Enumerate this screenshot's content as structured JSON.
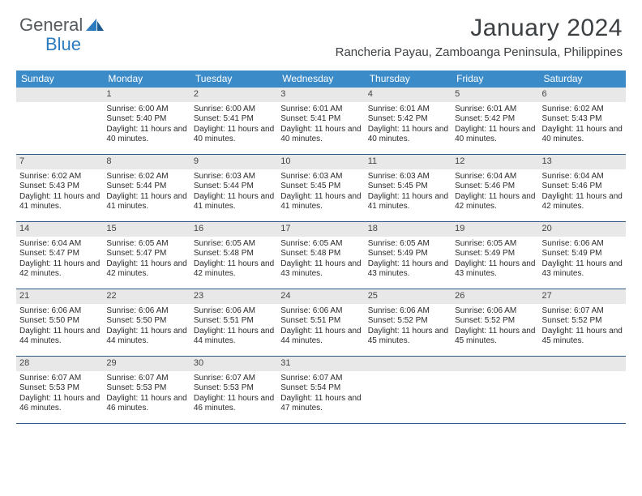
{
  "brand": {
    "part1": "General",
    "part2": "Blue"
  },
  "colors": {
    "header_bg": "#3b8bc9",
    "header_text": "#ffffff",
    "border": "#305a84",
    "daynum_bg": "#e8e8e8",
    "text": "#2b2b2b",
    "brand_gray": "#555a5e",
    "brand_blue": "#2c7bbf"
  },
  "title": "January 2024",
  "location": "Rancheria Payau, Zamboanga Peninsula, Philippines",
  "day_names": [
    "Sunday",
    "Monday",
    "Tuesday",
    "Wednesday",
    "Thursday",
    "Friday",
    "Saturday"
  ],
  "weeks": [
    [
      {
        "num": "",
        "sunrise": "",
        "sunset": "",
        "daylight": ""
      },
      {
        "num": "1",
        "sunrise": "Sunrise: 6:00 AM",
        "sunset": "Sunset: 5:40 PM",
        "daylight": "Daylight: 11 hours and 40 minutes."
      },
      {
        "num": "2",
        "sunrise": "Sunrise: 6:00 AM",
        "sunset": "Sunset: 5:41 PM",
        "daylight": "Daylight: 11 hours and 40 minutes."
      },
      {
        "num": "3",
        "sunrise": "Sunrise: 6:01 AM",
        "sunset": "Sunset: 5:41 PM",
        "daylight": "Daylight: 11 hours and 40 minutes."
      },
      {
        "num": "4",
        "sunrise": "Sunrise: 6:01 AM",
        "sunset": "Sunset: 5:42 PM",
        "daylight": "Daylight: 11 hours and 40 minutes."
      },
      {
        "num": "5",
        "sunrise": "Sunrise: 6:01 AM",
        "sunset": "Sunset: 5:42 PM",
        "daylight": "Daylight: 11 hours and 40 minutes."
      },
      {
        "num": "6",
        "sunrise": "Sunrise: 6:02 AM",
        "sunset": "Sunset: 5:43 PM",
        "daylight": "Daylight: 11 hours and 40 minutes."
      }
    ],
    [
      {
        "num": "7",
        "sunrise": "Sunrise: 6:02 AM",
        "sunset": "Sunset: 5:43 PM",
        "daylight": "Daylight: 11 hours and 41 minutes."
      },
      {
        "num": "8",
        "sunrise": "Sunrise: 6:02 AM",
        "sunset": "Sunset: 5:44 PM",
        "daylight": "Daylight: 11 hours and 41 minutes."
      },
      {
        "num": "9",
        "sunrise": "Sunrise: 6:03 AM",
        "sunset": "Sunset: 5:44 PM",
        "daylight": "Daylight: 11 hours and 41 minutes."
      },
      {
        "num": "10",
        "sunrise": "Sunrise: 6:03 AM",
        "sunset": "Sunset: 5:45 PM",
        "daylight": "Daylight: 11 hours and 41 minutes."
      },
      {
        "num": "11",
        "sunrise": "Sunrise: 6:03 AM",
        "sunset": "Sunset: 5:45 PM",
        "daylight": "Daylight: 11 hours and 41 minutes."
      },
      {
        "num": "12",
        "sunrise": "Sunrise: 6:04 AM",
        "sunset": "Sunset: 5:46 PM",
        "daylight": "Daylight: 11 hours and 42 minutes."
      },
      {
        "num": "13",
        "sunrise": "Sunrise: 6:04 AM",
        "sunset": "Sunset: 5:46 PM",
        "daylight": "Daylight: 11 hours and 42 minutes."
      }
    ],
    [
      {
        "num": "14",
        "sunrise": "Sunrise: 6:04 AM",
        "sunset": "Sunset: 5:47 PM",
        "daylight": "Daylight: 11 hours and 42 minutes."
      },
      {
        "num": "15",
        "sunrise": "Sunrise: 6:05 AM",
        "sunset": "Sunset: 5:47 PM",
        "daylight": "Daylight: 11 hours and 42 minutes."
      },
      {
        "num": "16",
        "sunrise": "Sunrise: 6:05 AM",
        "sunset": "Sunset: 5:48 PM",
        "daylight": "Daylight: 11 hours and 42 minutes."
      },
      {
        "num": "17",
        "sunrise": "Sunrise: 6:05 AM",
        "sunset": "Sunset: 5:48 PM",
        "daylight": "Daylight: 11 hours and 43 minutes."
      },
      {
        "num": "18",
        "sunrise": "Sunrise: 6:05 AM",
        "sunset": "Sunset: 5:49 PM",
        "daylight": "Daylight: 11 hours and 43 minutes."
      },
      {
        "num": "19",
        "sunrise": "Sunrise: 6:05 AM",
        "sunset": "Sunset: 5:49 PM",
        "daylight": "Daylight: 11 hours and 43 minutes."
      },
      {
        "num": "20",
        "sunrise": "Sunrise: 6:06 AM",
        "sunset": "Sunset: 5:49 PM",
        "daylight": "Daylight: 11 hours and 43 minutes."
      }
    ],
    [
      {
        "num": "21",
        "sunrise": "Sunrise: 6:06 AM",
        "sunset": "Sunset: 5:50 PM",
        "daylight": "Daylight: 11 hours and 44 minutes."
      },
      {
        "num": "22",
        "sunrise": "Sunrise: 6:06 AM",
        "sunset": "Sunset: 5:50 PM",
        "daylight": "Daylight: 11 hours and 44 minutes."
      },
      {
        "num": "23",
        "sunrise": "Sunrise: 6:06 AM",
        "sunset": "Sunset: 5:51 PM",
        "daylight": "Daylight: 11 hours and 44 minutes."
      },
      {
        "num": "24",
        "sunrise": "Sunrise: 6:06 AM",
        "sunset": "Sunset: 5:51 PM",
        "daylight": "Daylight: 11 hours and 44 minutes."
      },
      {
        "num": "25",
        "sunrise": "Sunrise: 6:06 AM",
        "sunset": "Sunset: 5:52 PM",
        "daylight": "Daylight: 11 hours and 45 minutes."
      },
      {
        "num": "26",
        "sunrise": "Sunrise: 6:06 AM",
        "sunset": "Sunset: 5:52 PM",
        "daylight": "Daylight: 11 hours and 45 minutes."
      },
      {
        "num": "27",
        "sunrise": "Sunrise: 6:07 AM",
        "sunset": "Sunset: 5:52 PM",
        "daylight": "Daylight: 11 hours and 45 minutes."
      }
    ],
    [
      {
        "num": "28",
        "sunrise": "Sunrise: 6:07 AM",
        "sunset": "Sunset: 5:53 PM",
        "daylight": "Daylight: 11 hours and 46 minutes."
      },
      {
        "num": "29",
        "sunrise": "Sunrise: 6:07 AM",
        "sunset": "Sunset: 5:53 PM",
        "daylight": "Daylight: 11 hours and 46 minutes."
      },
      {
        "num": "30",
        "sunrise": "Sunrise: 6:07 AM",
        "sunset": "Sunset: 5:53 PM",
        "daylight": "Daylight: 11 hours and 46 minutes."
      },
      {
        "num": "31",
        "sunrise": "Sunrise: 6:07 AM",
        "sunset": "Sunset: 5:54 PM",
        "daylight": "Daylight: 11 hours and 47 minutes."
      },
      {
        "num": "",
        "sunrise": "",
        "sunset": "",
        "daylight": ""
      },
      {
        "num": "",
        "sunrise": "",
        "sunset": "",
        "daylight": ""
      },
      {
        "num": "",
        "sunrise": "",
        "sunset": "",
        "daylight": ""
      }
    ]
  ]
}
